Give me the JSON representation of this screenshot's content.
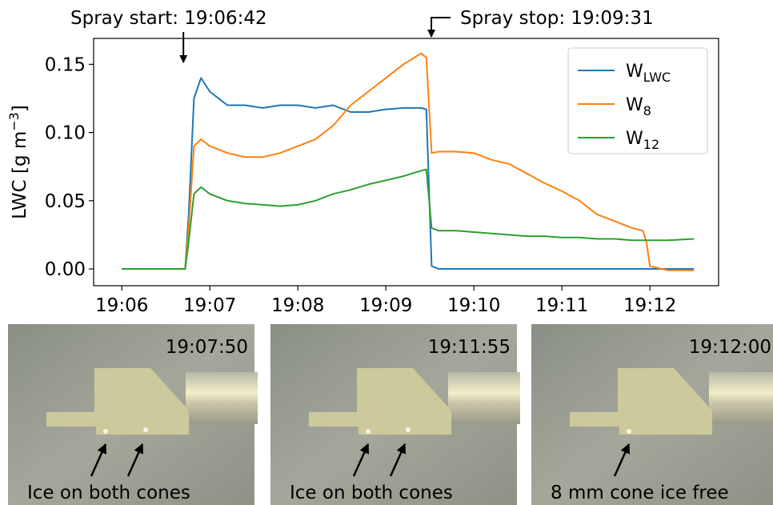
{
  "chart_data": {
    "type": "line",
    "y_label": {
      "text": "LWC [g m",
      "sup": "−3",
      "end": "]"
    },
    "annotations": [
      {
        "text": "Spray start: 19:06:42",
        "x": 6.7
      },
      {
        "text": "Spray stop: 19:09:31",
        "x": 9.517
      }
    ],
    "x": [
      6.0,
      6.3,
      6.6,
      6.72,
      6.76,
      6.82,
      6.9,
      7.0,
      7.2,
      7.4,
      7.6,
      7.8,
      8.0,
      8.2,
      8.4,
      8.6,
      8.8,
      9.0,
      9.2,
      9.4,
      9.46,
      9.52,
      9.6,
      9.8,
      10.0,
      10.2,
      10.4,
      10.6,
      10.8,
      11.0,
      11.2,
      11.4,
      11.6,
      11.8,
      11.92,
      11.96,
      12.0,
      12.2,
      12.5
    ],
    "series": [
      {
        "name": "W",
        "subscript": "LWC",
        "color": "#1f77b4",
        "values": [
          0,
          0,
          0,
          0,
          0.04,
          0.125,
          0.14,
          0.13,
          0.12,
          0.12,
          0.118,
          0.12,
          0.12,
          0.118,
          0.12,
          0.115,
          0.115,
          0.117,
          0.118,
          0.118,
          0.117,
          0.002,
          0,
          0,
          0,
          0,
          0,
          0,
          0,
          0,
          0,
          0,
          0,
          0,
          0,
          0,
          0,
          0,
          0
        ]
      },
      {
        "name": "W",
        "subscript": "8",
        "color": "#ff7f0e",
        "values": [
          0,
          0,
          0,
          0,
          0.03,
          0.09,
          0.095,
          0.09,
          0.085,
          0.082,
          0.082,
          0.085,
          0.09,
          0.095,
          0.105,
          0.12,
          0.13,
          0.14,
          0.15,
          0.158,
          0.155,
          0.085,
          0.086,
          0.086,
          0.085,
          0.08,
          0.077,
          0.07,
          0.063,
          0.057,
          0.05,
          0.04,
          0.035,
          0.03,
          0.028,
          0.02,
          0.002,
          -0.001,
          -0.001
        ]
      },
      {
        "name": "W",
        "subscript": "12",
        "color": "#2ca02c",
        "values": [
          0,
          0,
          0,
          0,
          0.02,
          0.055,
          0.06,
          0.055,
          0.05,
          0.048,
          0.047,
          0.046,
          0.047,
          0.05,
          0.055,
          0.058,
          0.062,
          0.065,
          0.068,
          0.072,
          0.073,
          0.03,
          0.028,
          0.028,
          0.027,
          0.026,
          0.025,
          0.024,
          0.024,
          0.023,
          0.023,
          0.022,
          0.022,
          0.021,
          0.021,
          0.021,
          0.021,
          0.021,
          0.022
        ]
      }
    ],
    "xlim": [
      5.68,
      12.78
    ],
    "xticks": [
      {
        "value": 6,
        "label": "19:06"
      },
      {
        "value": 7,
        "label": "19:07"
      },
      {
        "value": 8,
        "label": "19:08"
      },
      {
        "value": 9,
        "label": "19:09"
      },
      {
        "value": 10,
        "label": "19:10"
      },
      {
        "value": 11,
        "label": "19:11"
      },
      {
        "value": 12,
        "label": "19:12"
      }
    ],
    "ylim": [
      -0.0123,
      0.169
    ],
    "yticks": [
      {
        "value": 0,
        "label": "0.00"
      },
      {
        "value": 0.05,
        "label": "0.05"
      },
      {
        "value": 0.1,
        "label": "0.10"
      },
      {
        "value": 0.15,
        "label": "0.15"
      }
    ],
    "legend": "upper right",
    "grid": false
  },
  "photos": [
    {
      "time": "19:07:50",
      "caption": "Ice on both cones"
    },
    {
      "time": "19:11:55",
      "caption": "Ice on both cones"
    },
    {
      "time": "19:12:00",
      "caption": "8 mm cone ice free"
    }
  ]
}
